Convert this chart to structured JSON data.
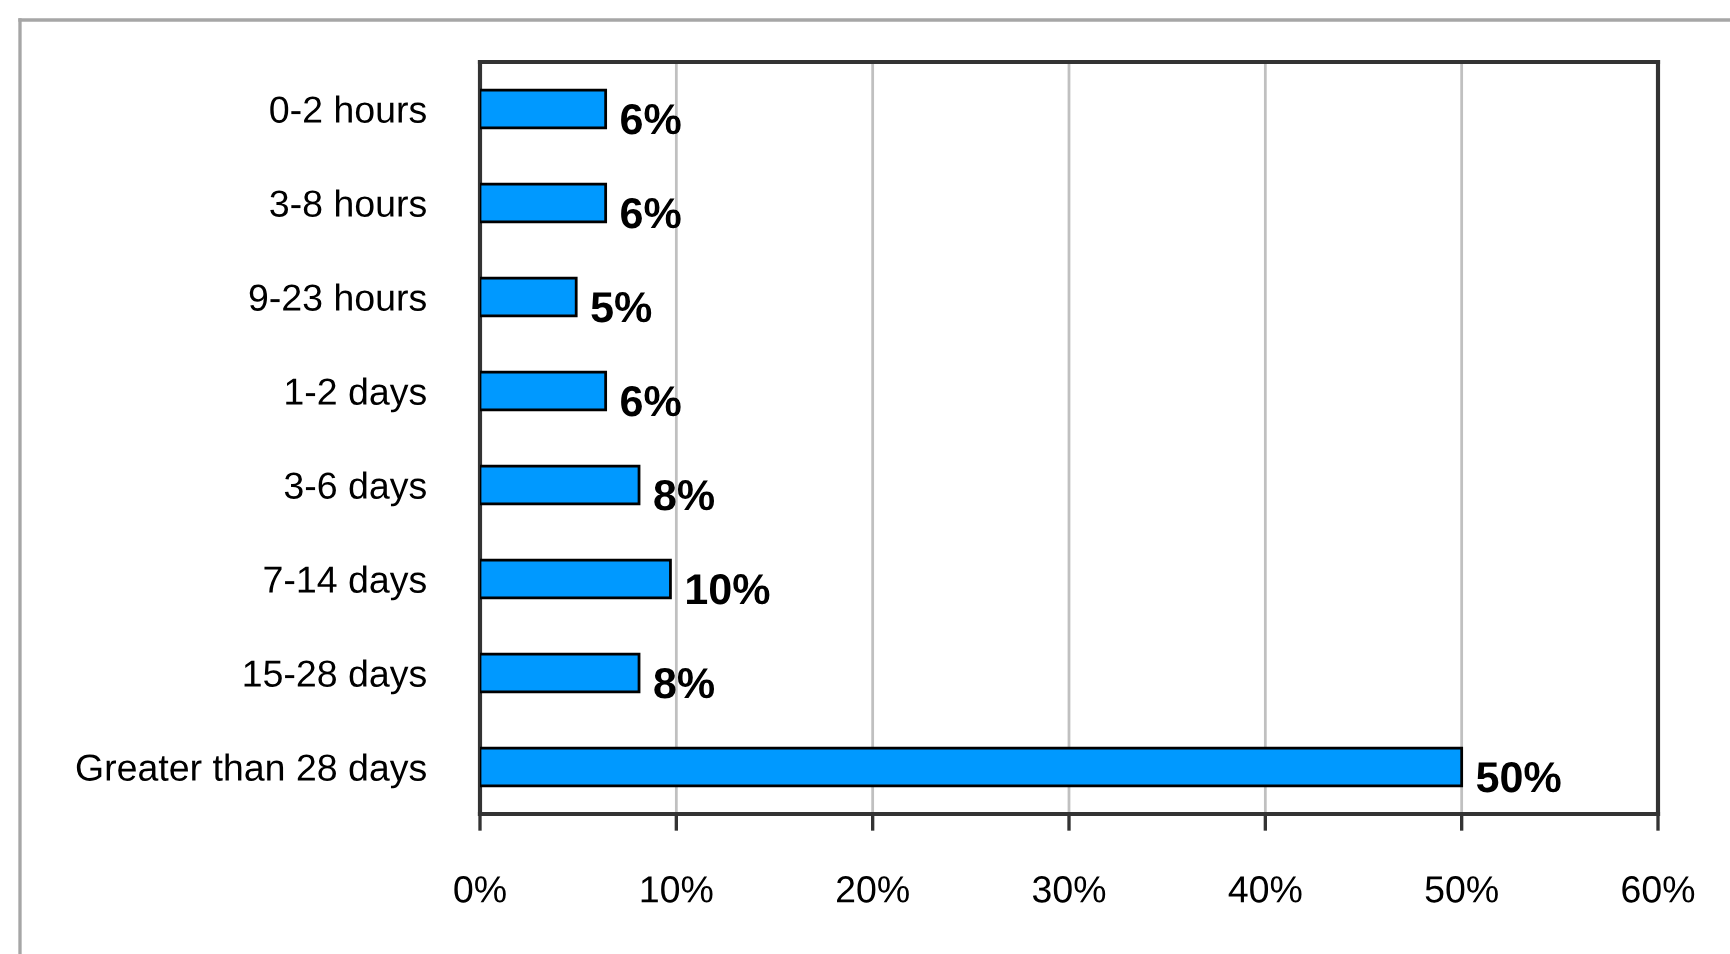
{
  "chart_data": {
    "type": "bar",
    "orientation": "horizontal",
    "categories": [
      "0-2 hours",
      "3-8 hours",
      "9-23 hours",
      "1-2 days",
      "3-6 days",
      "7-14 days",
      "15-28 days",
      "Greater than 28 days"
    ],
    "values": [
      6.4,
      6.4,
      4.9,
      6.4,
      8.1,
      9.7,
      8.1,
      50
    ],
    "value_labels": [
      "6%",
      "6%",
      "5%",
      "6%",
      "8%",
      "10%",
      "8%",
      "50%"
    ],
    "color": "#0099ff",
    "xlim": [
      0,
      60
    ],
    "xticks": [
      {
        "value": 0,
        "label": "0%"
      },
      {
        "value": 10,
        "label": "10%"
      },
      {
        "value": 20,
        "label": "20%"
      },
      {
        "value": 30,
        "label": "30%"
      },
      {
        "value": 40,
        "label": "40%"
      },
      {
        "value": 50,
        "label": "50%"
      },
      {
        "value": 60,
        "label": "60%"
      }
    ],
    "grid": "x"
  }
}
